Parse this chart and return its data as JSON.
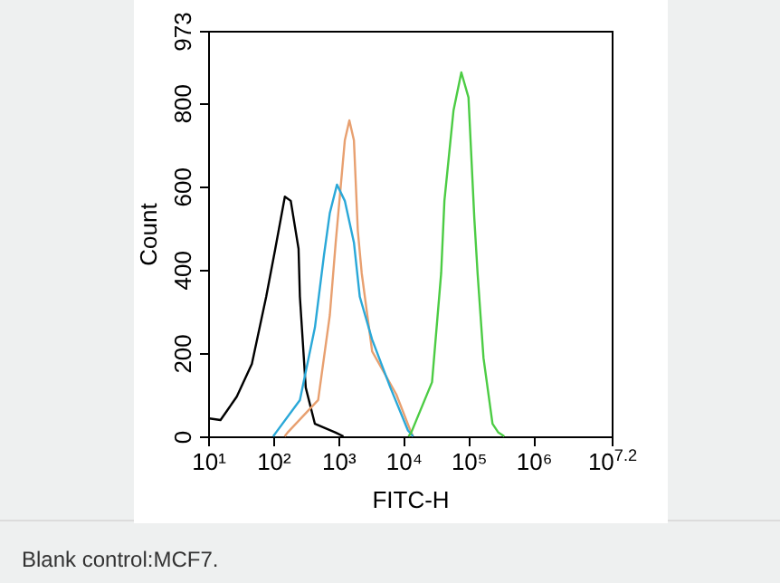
{
  "chart_data": {
    "type": "line",
    "xlabel": "FITC-H",
    "ylabel": "Count",
    "log": "x",
    "xlim": [
      10,
      15848932
    ],
    "xticks": [
      {
        "value": 10,
        "label": "10¹"
      },
      {
        "value": 100,
        "label": "10²"
      },
      {
        "value": 1000,
        "label": "10³"
      },
      {
        "value": 10000,
        "label": "10⁴"
      },
      {
        "value": 100000,
        "label": "10⁵"
      },
      {
        "value": 1000000,
        "label": "10⁶"
      },
      {
        "value": 15848932,
        "label": "10$^{7.2}$"
      }
    ],
    "ylim": [
      0,
      973
    ],
    "yticks": [
      0,
      200,
      400,
      600,
      800,
      973
    ],
    "grid": false,
    "legend": false,
    "marker": "none",
    "line_style": "solid",
    "series": [
      {
        "color": "#000000",
        "x": [
          10.5,
          15.5,
          27.5,
          47,
          78,
          107,
          151,
          186,
          245,
          257,
          316,
          437,
          912,
          1200
        ],
        "values": [
          43,
          39,
          95,
          174,
          335,
          448,
          575,
          565,
          450,
          335,
          117,
          30,
          9,
          0
        ]
      },
      {
        "color": "#e8a070",
        "x": [
          150,
          166,
          490,
          741,
          912,
          1259,
          1479,
          1738,
          1995,
          2291,
          3311,
          7762,
          13180,
          14125
        ],
        "values": [
          0,
          9,
          87,
          291,
          465,
          710,
          758,
          710,
          493,
          391,
          204,
          101,
          9,
          0
        ]
      },
      {
        "color": "#2aa8d8",
        "x": [
          100,
          110,
          257,
          437,
          603,
          741,
          955,
          1259,
          1738,
          2138,
          3311,
          6310,
          11750,
          14125
        ],
        "values": [
          0,
          9,
          87,
          261,
          435,
          536,
          604,
          565,
          465,
          335,
          232,
          117,
          14,
          0
        ]
      },
      {
        "color": "#4ccc44",
        "x": [
          12000,
          13180,
          27540,
          38020,
          42660,
          58880,
          77620,
          100000,
          123000,
          138000,
          170000,
          234000,
          288000,
          355000
        ],
        "values": [
          0,
          9,
          130,
          391,
          565,
          782,
          873,
          813,
          522,
          391,
          188,
          30,
          9,
          0
        ]
      }
    ],
    "annotations": [
      "Blank control:MCF7."
    ]
  }
}
